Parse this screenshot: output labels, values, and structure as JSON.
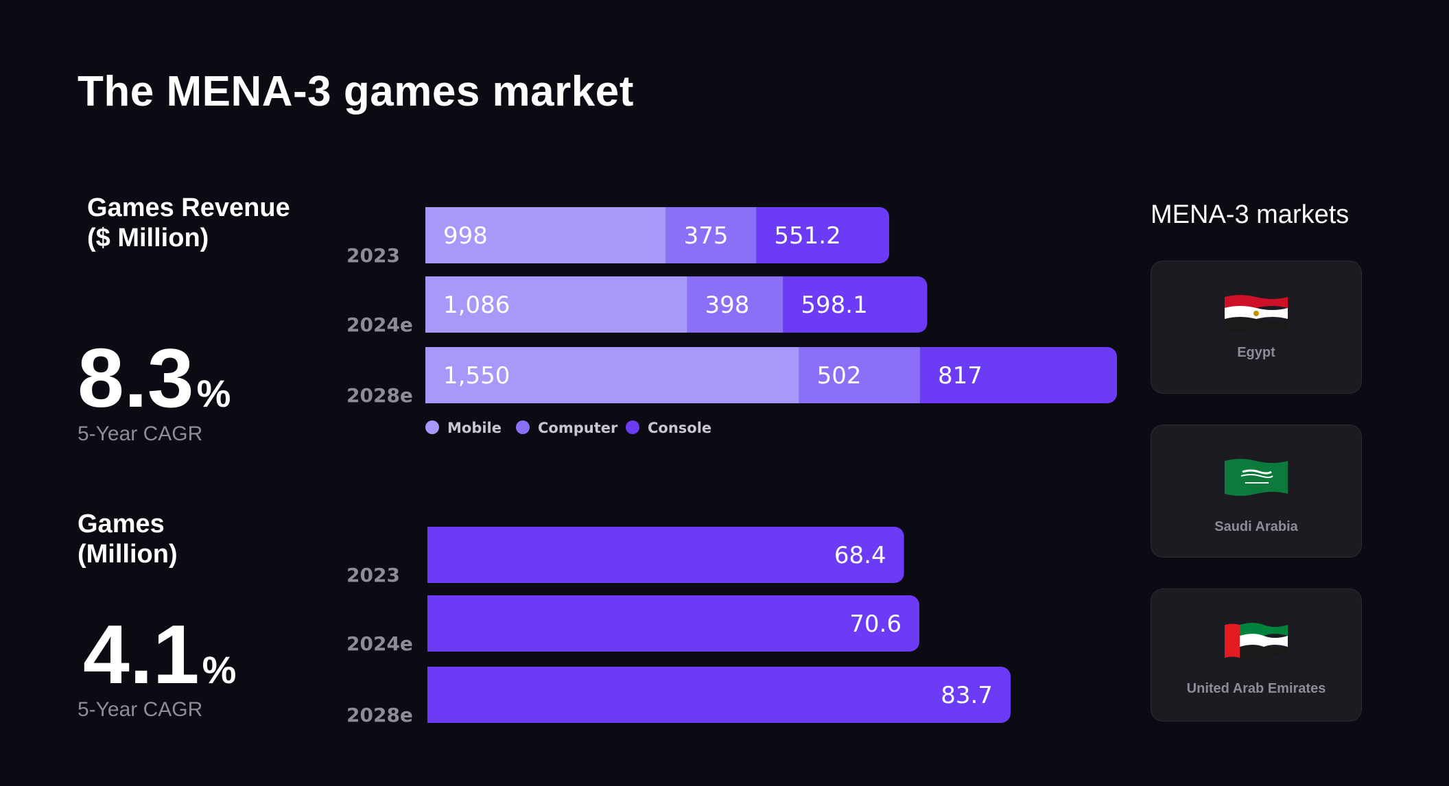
{
  "page": {
    "title": "The MENA-3 games market"
  },
  "revenue_section": {
    "title": "Games Revenue\n($ Million)",
    "cagr_value": "8.3",
    "cagr_unit": "%",
    "cagr_label": "5-Year CAGR"
  },
  "games_section": {
    "title": "Games\n(Million)",
    "cagr_value": "4.1",
    "cagr_unit": "%",
    "cagr_label": "5-Year CAGR"
  },
  "markets": {
    "title": "MENA-3 markets",
    "countries": [
      {
        "name": "Egypt",
        "flag_icon": "egypt-flag-icon"
      },
      {
        "name": "Saudi Arabia",
        "flag_icon": "saudi-arabia-flag-icon"
      },
      {
        "name": "United Arab Emirates",
        "flag_icon": "uae-flag-icon"
      }
    ]
  },
  "colors": {
    "background": "#0c0a12",
    "mobile": "#a898f9",
    "computer": "#8b70f7",
    "console": "#6b3bf5"
  },
  "chart_data": [
    {
      "type": "bar",
      "orientation": "horizontal",
      "stacked": true,
      "categories": [
        "2023",
        "2024e",
        "2028e"
      ],
      "series": [
        {
          "name": "Mobile",
          "values": [
            998,
            1086,
            1550
          ],
          "labels": [
            "998",
            "1,086",
            "1,550"
          ],
          "color": "#a898f9"
        },
        {
          "name": "Computer",
          "values": [
            375,
            398,
            502
          ],
          "labels": [
            "375",
            "398",
            "502"
          ],
          "color": "#8b70f7"
        },
        {
          "name": "Console",
          "values": [
            551.2,
            598.1,
            817
          ],
          "labels": [
            "551.2",
            "598.1",
            "817"
          ],
          "color": "#6b3bf5"
        }
      ],
      "legend_position": "bottom-left",
      "grid": false,
      "xlim": [
        0,
        2869
      ]
    },
    {
      "type": "bar",
      "orientation": "horizontal",
      "categories": [
        "2023",
        "2024e",
        "2028e"
      ],
      "series": [
        {
          "values": [
            68.4,
            70.6,
            83.7
          ],
          "labels": [
            "68.4",
            "70.6",
            "83.7"
          ],
          "color": "#6b3bf5"
        }
      ],
      "grid": false,
      "xlim": [
        0,
        83.7
      ]
    }
  ]
}
